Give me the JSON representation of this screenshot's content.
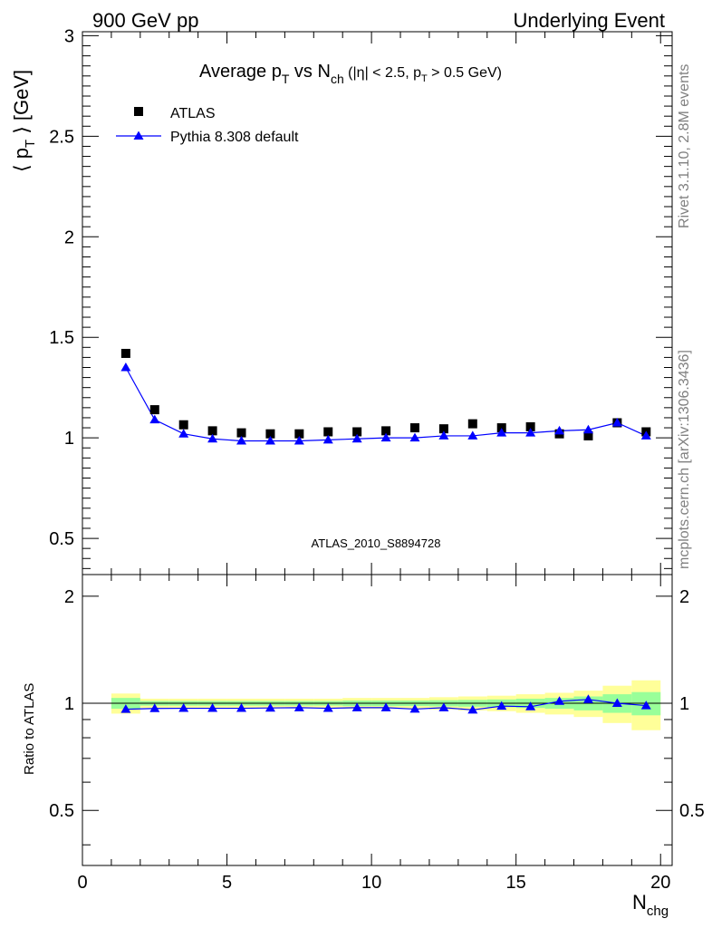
{
  "header": {
    "left": "900 GeV pp",
    "right": "Underlying Event"
  },
  "side_labels": {
    "rivet": "Rivet 3.1.10,  2.8M events",
    "mcplots": "mcplots.cern.ch [arXiv:1306.3436]"
  },
  "chart_data": [
    {
      "type": "scatter",
      "title": "Average p_T vs N_ch (|η| < 2.5, p_T > 0.5 GeV)",
      "title_parts": {
        "main": "Average p",
        "sub1": "T",
        "mid": " vs N",
        "sub2": "ch",
        "tail1": " (|η| < 2.5, p",
        "sub3": "T",
        "tail2": " > 0.5 GeV)"
      },
      "ylabel": "⟨ p_T ⟩ [GeV]",
      "ylabel_parts": {
        "pre": "⟨ p",
        "sub": "T",
        "post": " ⟩ [GeV]"
      },
      "watermark": "ATLAS_2010_S8894728",
      "xlim": [
        0,
        20.4
      ],
      "ylim": [
        0.32,
        3.02
      ],
      "yticks": [
        0.5,
        1,
        1.5,
        2,
        2.5,
        3
      ],
      "ytick_labels": [
        "0.5",
        "1",
        "1.5",
        "2",
        "2.5",
        "3"
      ],
      "legend": "top-left",
      "series": [
        {
          "name": "ATLAS",
          "marker": "square",
          "color": "#000000",
          "x": [
            1.5,
            2.5,
            3.5,
            4.5,
            5.5,
            6.5,
            7.5,
            8.5,
            9.5,
            10.5,
            11.5,
            12.5,
            13.5,
            14.5,
            15.5,
            16.5,
            17.5,
            18.5,
            19.5
          ],
          "y": [
            1.42,
            1.14,
            1.065,
            1.035,
            1.025,
            1.02,
            1.02,
            1.03,
            1.03,
            1.035,
            1.05,
            1.045,
            1.07,
            1.05,
            1.055,
            1.02,
            1.01,
            1.075,
            1.03
          ]
        },
        {
          "name": "Pythia 8.308 default",
          "marker": "triangle",
          "color": "#0000ff",
          "x": [
            1.5,
            2.5,
            3.5,
            4.5,
            5.5,
            6.5,
            7.5,
            8.5,
            9.5,
            10.5,
            11.5,
            12.5,
            13.5,
            14.5,
            15.5,
            16.5,
            17.5,
            18.5,
            19.5
          ],
          "y": [
            1.35,
            1.09,
            1.02,
            0.995,
            0.985,
            0.985,
            0.985,
            0.99,
            0.995,
            1.0,
            1.0,
            1.01,
            1.01,
            1.025,
            1.025,
            1.035,
            1.04,
            1.075,
            1.01
          ]
        }
      ]
    },
    {
      "type": "scatter",
      "ylabel": "Ratio to ATLAS",
      "xlabel": "N_chg",
      "xlabel_parts": {
        "main": "N",
        "sub": "chg"
      },
      "xlim": [
        0,
        20.4
      ],
      "ylim": [
        0.35,
        2.3
      ],
      "xticks": [
        0,
        5,
        10,
        15,
        20
      ],
      "xtick_labels": [
        "0",
        "5",
        "10",
        "15",
        "20"
      ],
      "yticks": [
        0.5,
        1,
        2
      ],
      "ytick_labels": [
        "0.5",
        "1",
        "2"
      ],
      "bands": {
        "x_edges": [
          1,
          2,
          3,
          4,
          5,
          6,
          7,
          8,
          9,
          10,
          11,
          12,
          13,
          14,
          15,
          16,
          17,
          18,
          19,
          20
        ],
        "yellow_color": "#ffff99",
        "green_color": "#99ff99",
        "yellow_halfwidth": [
          0.065,
          0.03,
          0.03,
          0.03,
          0.03,
          0.03,
          0.03,
          0.03,
          0.035,
          0.035,
          0.035,
          0.04,
          0.045,
          0.05,
          0.06,
          0.07,
          0.085,
          0.12,
          0.16
        ],
        "green_halfwidth": [
          0.035,
          0.015,
          0.015,
          0.015,
          0.015,
          0.015,
          0.015,
          0.015,
          0.018,
          0.018,
          0.018,
          0.02,
          0.022,
          0.025,
          0.03,
          0.035,
          0.045,
          0.06,
          0.075
        ]
      },
      "series": [
        {
          "name": "Pythia 8.308 default",
          "marker": "triangle",
          "color": "#0000ff",
          "x": [
            1.5,
            2.5,
            3.5,
            4.5,
            5.5,
            6.5,
            7.5,
            8.5,
            9.5,
            10.5,
            11.5,
            12.5,
            13.5,
            14.5,
            15.5,
            16.5,
            17.5,
            18.5,
            19.5
          ],
          "y": [
            0.962,
            0.967,
            0.968,
            0.968,
            0.968,
            0.97,
            0.972,
            0.968,
            0.972,
            0.972,
            0.963,
            0.972,
            0.958,
            0.982,
            0.978,
            1.013,
            1.025,
            1.0,
            0.985
          ]
        }
      ]
    }
  ]
}
